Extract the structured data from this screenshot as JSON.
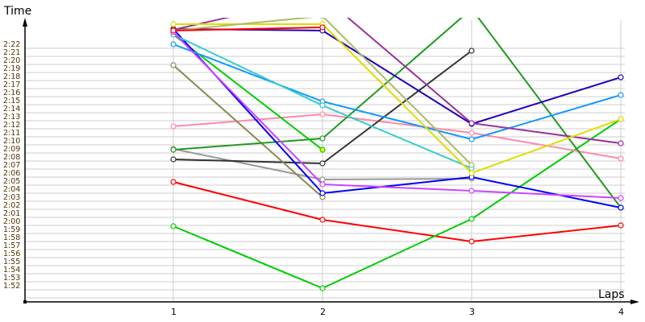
{
  "chart_data": {
    "type": "line",
    "ylabel": "Time",
    "xlabel": "Laps",
    "categories": [
      "1",
      "2",
      "3",
      "4"
    ],
    "y_ticks": [
      "2:22",
      "2:21",
      "2:20",
      "2:19",
      "2:18",
      "2:17",
      "2:16",
      "2:15",
      "2:14",
      "2:13",
      "2:12",
      "2:11",
      "2:10",
      "2:09",
      "2:08",
      "2:07",
      "2:06",
      "2:05",
      "2:04",
      "2:03",
      "2:02",
      "2:01",
      "2:00",
      "1:59",
      "1:58",
      "1:57",
      "1:56",
      "1:55",
      "1:54",
      "1:53",
      "1:52"
    ],
    "ylim": [
      "1:50",
      "2:25.5"
    ],
    "grid": true,
    "series": [
      {
        "color": "#ff0000",
        "values": [
          "2:05.4",
          "2:00.7",
          "1:58.0",
          "2:00.0"
        ]
      },
      {
        "color": "#00cc00",
        "values": [
          "1:59.9",
          "1:52.2",
          "2:00.8",
          "2:13.2"
        ]
      },
      {
        "color": "#ff88aa",
        "values": [
          "2:12.3",
          "2:13.8",
          "2:11.5",
          "2:08.3"
        ]
      },
      {
        "color": "#999999",
        "values": [
          "2:09.5",
          "2:05.7",
          "2:05.8",
          null
        ]
      },
      {
        "color": "#333333",
        "values": [
          "2:08.2",
          "2:07.7",
          "2:21.7",
          null
        ]
      },
      {
        "color": "#888855",
        "values": [
          "2:19.9",
          "2:03.5",
          null,
          null
        ]
      },
      {
        "color": "#229922",
        "values": [
          "2:09.4",
          "2:10.8",
          "2:26.9",
          "2:02.2"
        ]
      },
      {
        "color": "#00cc00",
        "fill": "#ffff00",
        "values": [
          "2:23.7",
          "2:09.4",
          null,
          null
        ]
      },
      {
        "color": "#0000ff",
        "values": [
          "2:24.4",
          "2:04.0",
          "2:06.0",
          "2:02.2"
        ]
      },
      {
        "color": "#2200bb",
        "values": [
          "2:24.4",
          "2:24.2",
          "2:12.6",
          "2:18.4"
        ]
      },
      {
        "color": "#1199ff",
        "values": [
          "2:22.5",
          "2:15.4",
          "2:10.7",
          "2:16.2"
        ]
      },
      {
        "color": "#33cccc",
        "values": [
          "2:23.7",
          "2:14.9",
          "2:07.1",
          null
        ]
      },
      {
        "color": "#cc44ff",
        "values": [
          "2:24.0",
          "2:05.1",
          "2:04.3",
          "2:03.4"
        ]
      },
      {
        "color": "#993399",
        "values": [
          "2:24.3",
          "2:28.5",
          "2:12.7",
          "2:10.2"
        ]
      },
      {
        "color": "#dddd00",
        "values": [
          "2:25.0",
          "2:25.0",
          "2:06.5",
          "2:13.2"
        ]
      },
      {
        "color": "#aabb66",
        "values": [
          "2:24.2",
          "2:26.0",
          "2:07.5",
          null
        ]
      },
      {
        "color": "#ff0000",
        "values": [
          "2:24.2",
          "2:24.6",
          null,
          null
        ]
      }
    ]
  }
}
